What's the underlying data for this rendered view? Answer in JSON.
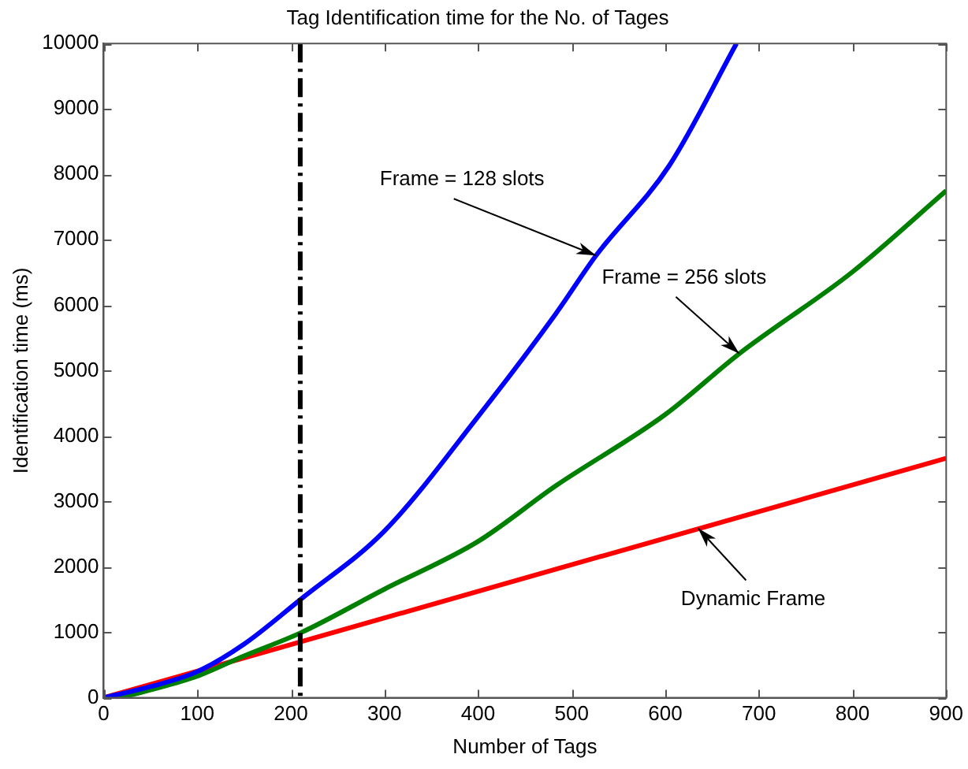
{
  "chart_data": {
    "type": "line",
    "title": "Tag Identification time for the No. of Tages",
    "xlabel": "Number of Tags",
    "ylabel": "Identification time (ms)",
    "xlim": [
      0,
      900
    ],
    "xticks": [
      0,
      100,
      200,
      300,
      400,
      500,
      600,
      700,
      800,
      900
    ],
    "ylim": [
      0,
      10000
    ],
    "yticks": [
      0,
      1000,
      2000,
      3000,
      4000,
      5000,
      6000,
      7000,
      8000,
      9000,
      10000
    ],
    "grid": false,
    "legend": false,
    "marker": "none",
    "line_style": "solid",
    "series": [
      {
        "color": "#0000ff",
        "x": [
          0,
          50,
          100,
          150,
          210,
          300,
          400,
          483,
          526,
          604,
          676
        ],
        "values": [
          0,
          170,
          400,
          820,
          1500,
          2550,
          4300,
          5870,
          6760,
          8130,
          10000
        ]
      },
      {
        "color": "#008000",
        "x": [
          0,
          25,
          50,
          100,
          150,
          210,
          300,
          400,
          483,
          600,
          679,
          800,
          900
        ],
        "values": [
          0,
          30,
          120,
          330,
          640,
          990,
          1660,
          2390,
          3240,
          4330,
          5260,
          6510,
          7750
        ]
      },
      {
        "color": "#ff0000",
        "x": [
          0,
          900
        ],
        "values": [
          0,
          3660
        ]
      }
    ],
    "ref_lines": [
      {
        "axis": "x",
        "value": 210,
        "color": "#000000",
        "line_style": "dashed"
      }
    ],
    "annotations": [
      {
        "text": "Frame = 128 slots",
        "x": 526,
        "y": 6760
      },
      {
        "text": "Frame = 256 slots",
        "x": 679,
        "y": 5260
      },
      {
        "text": "Dynamic Frame",
        "x": 635,
        "y": 2590
      }
    ]
  }
}
